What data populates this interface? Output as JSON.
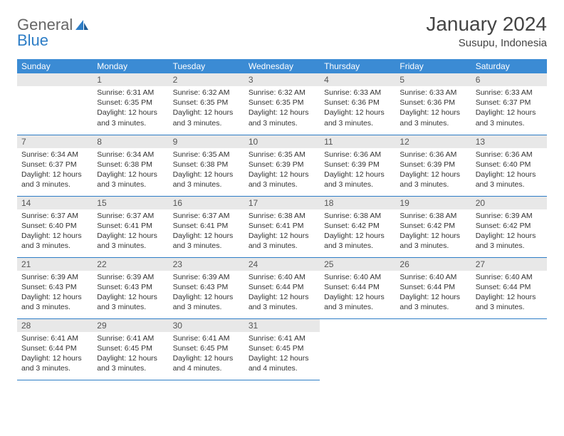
{
  "brand": {
    "part1": "General",
    "part2": "Blue"
  },
  "title": "January 2024",
  "location": "Susupu, Indonesia",
  "colors": {
    "header_bg": "#3b8bd4",
    "header_text": "#ffffff",
    "daynum_bg": "#e8e8e8",
    "border": "#2d7dc6",
    "text": "#333333",
    "brand_gray": "#666666",
    "brand_blue": "#2d7dc6"
  },
  "weekdays": [
    "Sunday",
    "Monday",
    "Tuesday",
    "Wednesday",
    "Thursday",
    "Friday",
    "Saturday"
  ],
  "layout": {
    "first_weekday_index": 1,
    "days_in_month": 31,
    "rows": 5
  },
  "days": {
    "1": {
      "sunrise": "6:31 AM",
      "sunset": "6:35 PM",
      "daylight": "12 hours and 3 minutes."
    },
    "2": {
      "sunrise": "6:32 AM",
      "sunset": "6:35 PM",
      "daylight": "12 hours and 3 minutes."
    },
    "3": {
      "sunrise": "6:32 AM",
      "sunset": "6:35 PM",
      "daylight": "12 hours and 3 minutes."
    },
    "4": {
      "sunrise": "6:33 AM",
      "sunset": "6:36 PM",
      "daylight": "12 hours and 3 minutes."
    },
    "5": {
      "sunrise": "6:33 AM",
      "sunset": "6:36 PM",
      "daylight": "12 hours and 3 minutes."
    },
    "6": {
      "sunrise": "6:33 AM",
      "sunset": "6:37 PM",
      "daylight": "12 hours and 3 minutes."
    },
    "7": {
      "sunrise": "6:34 AM",
      "sunset": "6:37 PM",
      "daylight": "12 hours and 3 minutes."
    },
    "8": {
      "sunrise": "6:34 AM",
      "sunset": "6:38 PM",
      "daylight": "12 hours and 3 minutes."
    },
    "9": {
      "sunrise": "6:35 AM",
      "sunset": "6:38 PM",
      "daylight": "12 hours and 3 minutes."
    },
    "10": {
      "sunrise": "6:35 AM",
      "sunset": "6:39 PM",
      "daylight": "12 hours and 3 minutes."
    },
    "11": {
      "sunrise": "6:36 AM",
      "sunset": "6:39 PM",
      "daylight": "12 hours and 3 minutes."
    },
    "12": {
      "sunrise": "6:36 AM",
      "sunset": "6:39 PM",
      "daylight": "12 hours and 3 minutes."
    },
    "13": {
      "sunrise": "6:36 AM",
      "sunset": "6:40 PM",
      "daylight": "12 hours and 3 minutes."
    },
    "14": {
      "sunrise": "6:37 AM",
      "sunset": "6:40 PM",
      "daylight": "12 hours and 3 minutes."
    },
    "15": {
      "sunrise": "6:37 AM",
      "sunset": "6:41 PM",
      "daylight": "12 hours and 3 minutes."
    },
    "16": {
      "sunrise": "6:37 AM",
      "sunset": "6:41 PM",
      "daylight": "12 hours and 3 minutes."
    },
    "17": {
      "sunrise": "6:38 AM",
      "sunset": "6:41 PM",
      "daylight": "12 hours and 3 minutes."
    },
    "18": {
      "sunrise": "6:38 AM",
      "sunset": "6:42 PM",
      "daylight": "12 hours and 3 minutes."
    },
    "19": {
      "sunrise": "6:38 AM",
      "sunset": "6:42 PM",
      "daylight": "12 hours and 3 minutes."
    },
    "20": {
      "sunrise": "6:39 AM",
      "sunset": "6:42 PM",
      "daylight": "12 hours and 3 minutes."
    },
    "21": {
      "sunrise": "6:39 AM",
      "sunset": "6:43 PM",
      "daylight": "12 hours and 3 minutes."
    },
    "22": {
      "sunrise": "6:39 AM",
      "sunset": "6:43 PM",
      "daylight": "12 hours and 3 minutes."
    },
    "23": {
      "sunrise": "6:39 AM",
      "sunset": "6:43 PM",
      "daylight": "12 hours and 3 minutes."
    },
    "24": {
      "sunrise": "6:40 AM",
      "sunset": "6:44 PM",
      "daylight": "12 hours and 3 minutes."
    },
    "25": {
      "sunrise": "6:40 AM",
      "sunset": "6:44 PM",
      "daylight": "12 hours and 3 minutes."
    },
    "26": {
      "sunrise": "6:40 AM",
      "sunset": "6:44 PM",
      "daylight": "12 hours and 3 minutes."
    },
    "27": {
      "sunrise": "6:40 AM",
      "sunset": "6:44 PM",
      "daylight": "12 hours and 3 minutes."
    },
    "28": {
      "sunrise": "6:41 AM",
      "sunset": "6:44 PM",
      "daylight": "12 hours and 3 minutes."
    },
    "29": {
      "sunrise": "6:41 AM",
      "sunset": "6:45 PM",
      "daylight": "12 hours and 3 minutes."
    },
    "30": {
      "sunrise": "6:41 AM",
      "sunset": "6:45 PM",
      "daylight": "12 hours and 4 minutes."
    },
    "31": {
      "sunrise": "6:41 AM",
      "sunset": "6:45 PM",
      "daylight": "12 hours and 4 minutes."
    }
  },
  "labels": {
    "sunrise": "Sunrise:",
    "sunset": "Sunset:",
    "daylight": "Daylight:"
  }
}
